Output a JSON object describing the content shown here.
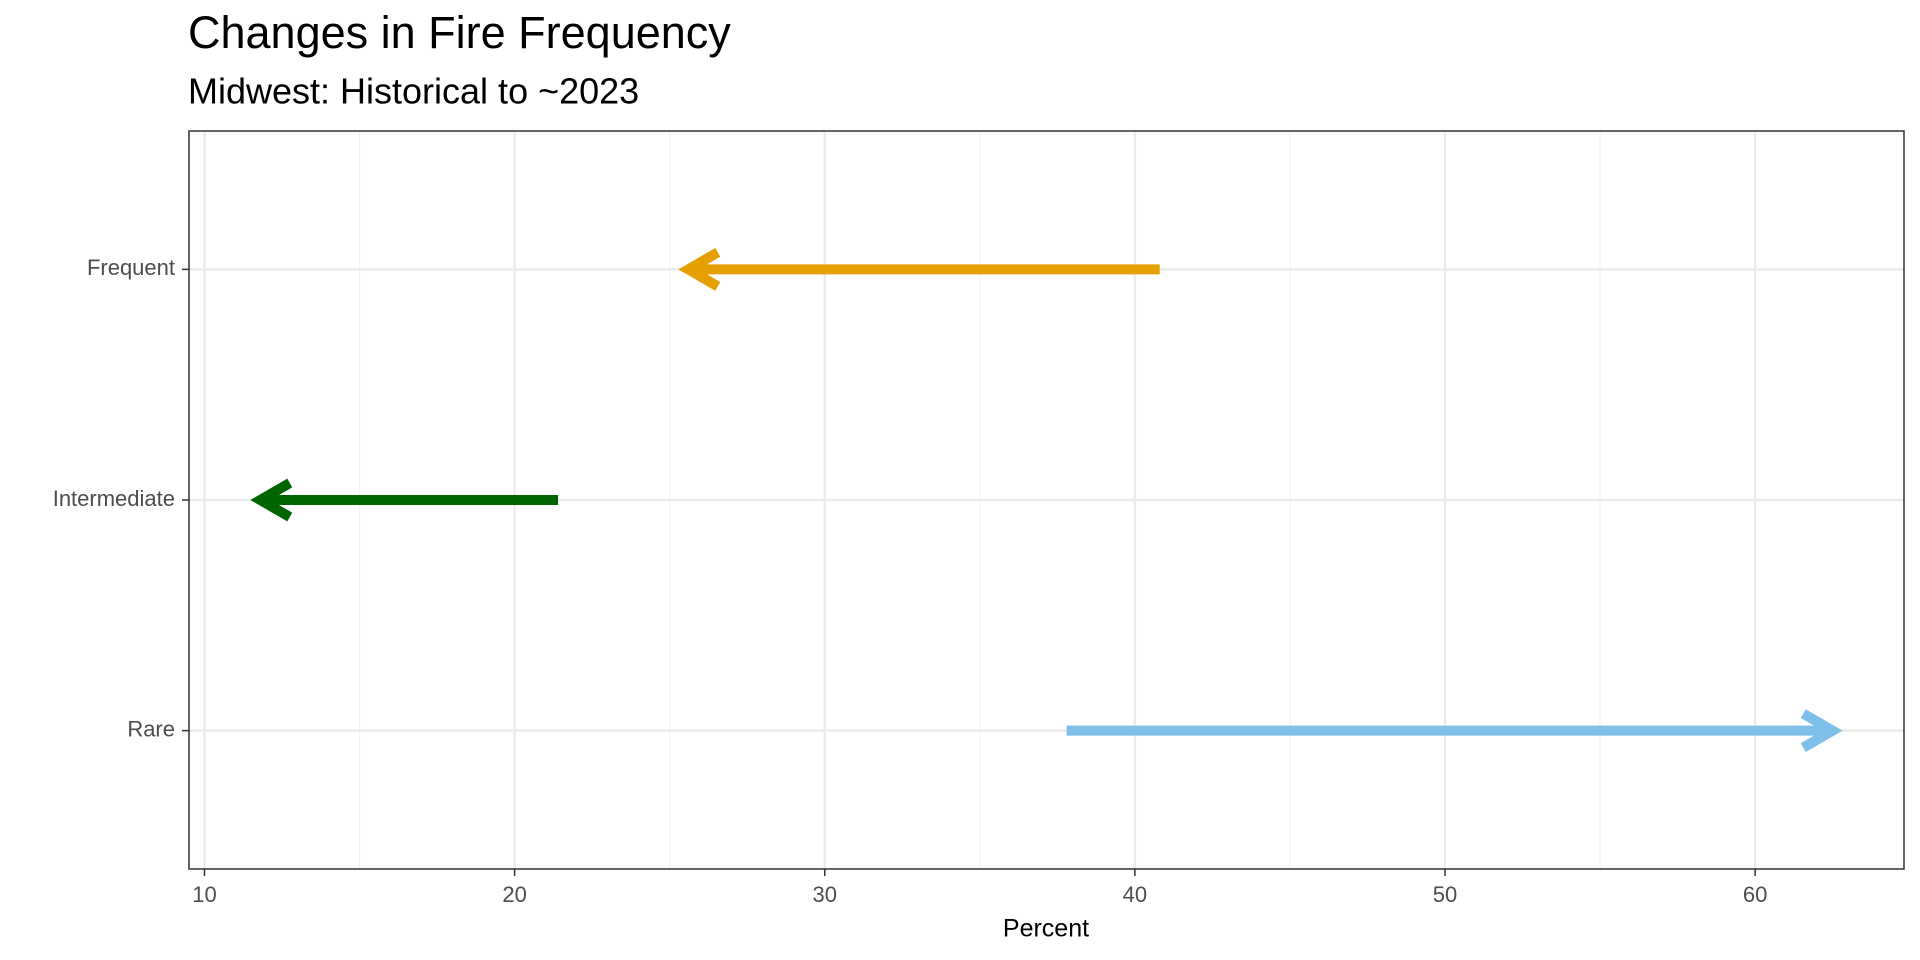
{
  "chart_data": {
    "type": "arrow",
    "title": "Changes in Fire Frequency",
    "subtitle": "Midwest: Historical to ~2023",
    "x_label": "Percent",
    "categories": [
      "Frequent",
      "Intermediate",
      "Rare"
    ],
    "from": [
      40.8,
      21.4,
      37.8
    ],
    "to": [
      25.6,
      11.8,
      62.5
    ],
    "colors": [
      "#e69f00",
      "#006400",
      "#7dbfe8"
    ],
    "xlim": [
      9.5,
      64.8
    ],
    "xticks": [
      10,
      20,
      30,
      40,
      50,
      60
    ],
    "xminorticks": [
      15,
      25,
      35,
      45,
      55
    ],
    "grid": true
  }
}
